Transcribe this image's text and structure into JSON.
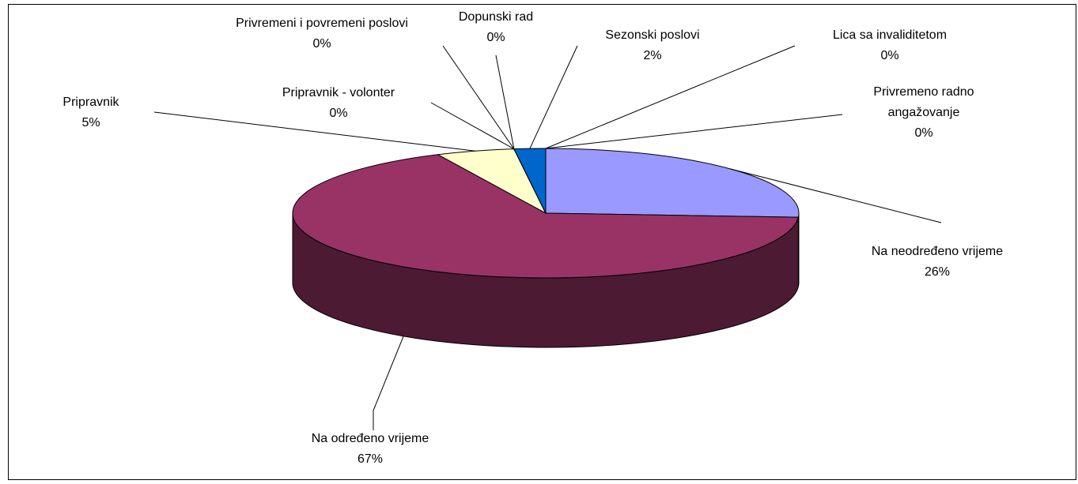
{
  "chart_data": {
    "type": "pie",
    "categories": [
      "Na neodređeno vrijeme",
      "Na određeno vrijeme",
      "Pripravnik",
      "Pripravnik - volonter",
      "Privremeni i povremeni poslovi",
      "Dopunski rad",
      "Sezonski poslovi",
      "Lica sa invaliditetom",
      "Privremeno radno angažovanje"
    ],
    "values": [
      26,
      67,
      5,
      0,
      0,
      0,
      2,
      0,
      0
    ],
    "value_labels": [
      "26%",
      "67%",
      "5%",
      "0%",
      "0%",
      "0%",
      "2%",
      "0%",
      "0%"
    ],
    "colors": [
      "#9999ff",
      "#993366",
      "#ffffcc",
      "#ccffff",
      "#660066",
      "#ff8080",
      "#0066cc",
      "#ccccff",
      "#000080"
    ]
  }
}
